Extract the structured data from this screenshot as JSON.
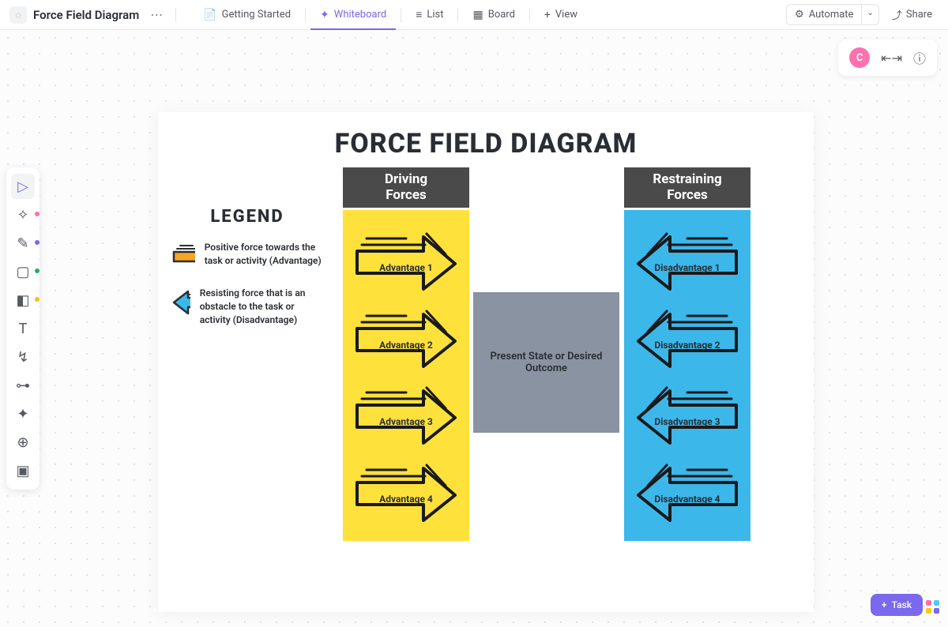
{
  "header": {
    "title": "Force Field Diagram",
    "tabs": [
      {
        "label": "Getting Started",
        "icon": "📄"
      },
      {
        "label": "Whiteboard",
        "icon": "✦",
        "active": true
      },
      {
        "label": "List",
        "icon": "≡"
      },
      {
        "label": "Board",
        "icon": "▦"
      },
      {
        "label": "View",
        "icon": "+"
      }
    ],
    "automate": "Automate",
    "share": "Share",
    "avatar": "C"
  },
  "toolbar": {
    "tools": [
      {
        "name": "select",
        "glyph": "▷",
        "active": true
      },
      {
        "name": "ai",
        "glyph": "✧",
        "dot": "#fd71af"
      },
      {
        "name": "pen",
        "glyph": "✎",
        "dot": "#7b68ee"
      },
      {
        "name": "shape",
        "glyph": "▢",
        "dot": "#27ae60"
      },
      {
        "name": "sticky",
        "glyph": "◧",
        "dot": "#f1c40f"
      },
      {
        "name": "text",
        "glyph": "T"
      },
      {
        "name": "connector",
        "glyph": "↯"
      },
      {
        "name": "mindmap",
        "glyph": "⊶"
      },
      {
        "name": "generate",
        "glyph": "✦"
      },
      {
        "name": "web",
        "glyph": "⊕"
      },
      {
        "name": "image",
        "glyph": "▣"
      }
    ]
  },
  "diagram": {
    "title": "FORCE FIELD  DIAGRAM",
    "legend": {
      "title": "LEGEND",
      "positive": "Positive force towards the task or activity (Advantage)",
      "negative": "Resisting force that is an obstacle to the task or activity (Disadvantage)"
    },
    "driving": {
      "header": "Driving Forces",
      "items": [
        "Advantage 1",
        "Advantage 2",
        "Advantage 3",
        "Advantage 4"
      ],
      "bg": "#ffe13b"
    },
    "restraining": {
      "header": "Restraining Forces",
      "items": [
        "Disadvantage 1",
        "Disadvantage 2",
        "Disadvantage 3",
        "Disadvantage 4"
      ],
      "bg": "#3cb7ea"
    },
    "center": "Present State or Desired Outcome",
    "colors": {
      "header_bg": "#4a4a4a",
      "center_bg": "#8993a1",
      "legend_pos_arrow": "#f5a623",
      "legend_neg_arrow": "#3cb7ea"
    }
  },
  "footer": {
    "task": "Task"
  }
}
